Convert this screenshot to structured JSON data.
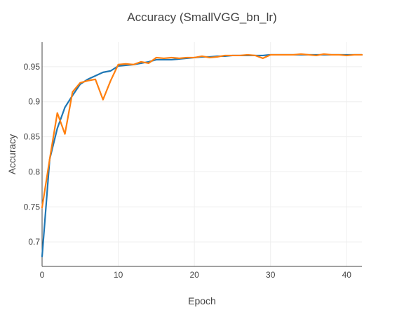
{
  "chart_data": {
    "type": "line",
    "title": "Accuracy (SmallVGG_bn_lr)",
    "xlabel": "Epoch",
    "ylabel": "Accuracy",
    "xlim": [
      0,
      42
    ],
    "ylim": [
      0.665,
      0.985
    ],
    "x_ticks": [
      0,
      10,
      20,
      30,
      40
    ],
    "y_ticks": [
      0.7,
      0.75,
      0.8,
      0.85,
      0.9,
      0.95
    ],
    "y_tick_labels": [
      "0.7",
      "0.75",
      "0.8",
      "0.85",
      "0.9",
      "0.95"
    ],
    "grid": true,
    "legend": "none",
    "x": [
      0,
      1,
      2,
      3,
      4,
      5,
      6,
      7,
      8,
      9,
      10,
      11,
      12,
      13,
      14,
      15,
      16,
      17,
      18,
      19,
      20,
      21,
      22,
      23,
      24,
      25,
      26,
      27,
      28,
      29,
      30,
      31,
      32,
      33,
      34,
      35,
      36,
      37,
      38,
      39,
      40,
      41,
      42
    ],
    "series": [
      {
        "color": "#1f77b4",
        "values": [
          0.679,
          0.818,
          0.862,
          0.892,
          0.909,
          0.925,
          0.932,
          0.937,
          0.942,
          0.944,
          0.951,
          0.952,
          0.953,
          0.955,
          0.957,
          0.96,
          0.96,
          0.96,
          0.961,
          0.962,
          0.963,
          0.964,
          0.964,
          0.965,
          0.965,
          0.966,
          0.966,
          0.966,
          0.966,
          0.966,
          0.967,
          0.967,
          0.967,
          0.967,
          0.967,
          0.967,
          0.967,
          0.967,
          0.967,
          0.967,
          0.967,
          0.967,
          0.967
        ]
      },
      {
        "color": "#ff7f0e",
        "values": [
          0.749,
          0.818,
          0.884,
          0.854,
          0.914,
          0.927,
          0.93,
          0.932,
          0.903,
          0.93,
          0.953,
          0.954,
          0.953,
          0.957,
          0.955,
          0.963,
          0.962,
          0.963,
          0.962,
          0.963,
          0.963,
          0.965,
          0.963,
          0.964,
          0.966,
          0.966,
          0.966,
          0.967,
          0.966,
          0.962,
          0.967,
          0.967,
          0.967,
          0.967,
          0.968,
          0.967,
          0.966,
          0.968,
          0.967,
          0.967,
          0.966,
          0.967,
          0.967
        ]
      }
    ]
  }
}
